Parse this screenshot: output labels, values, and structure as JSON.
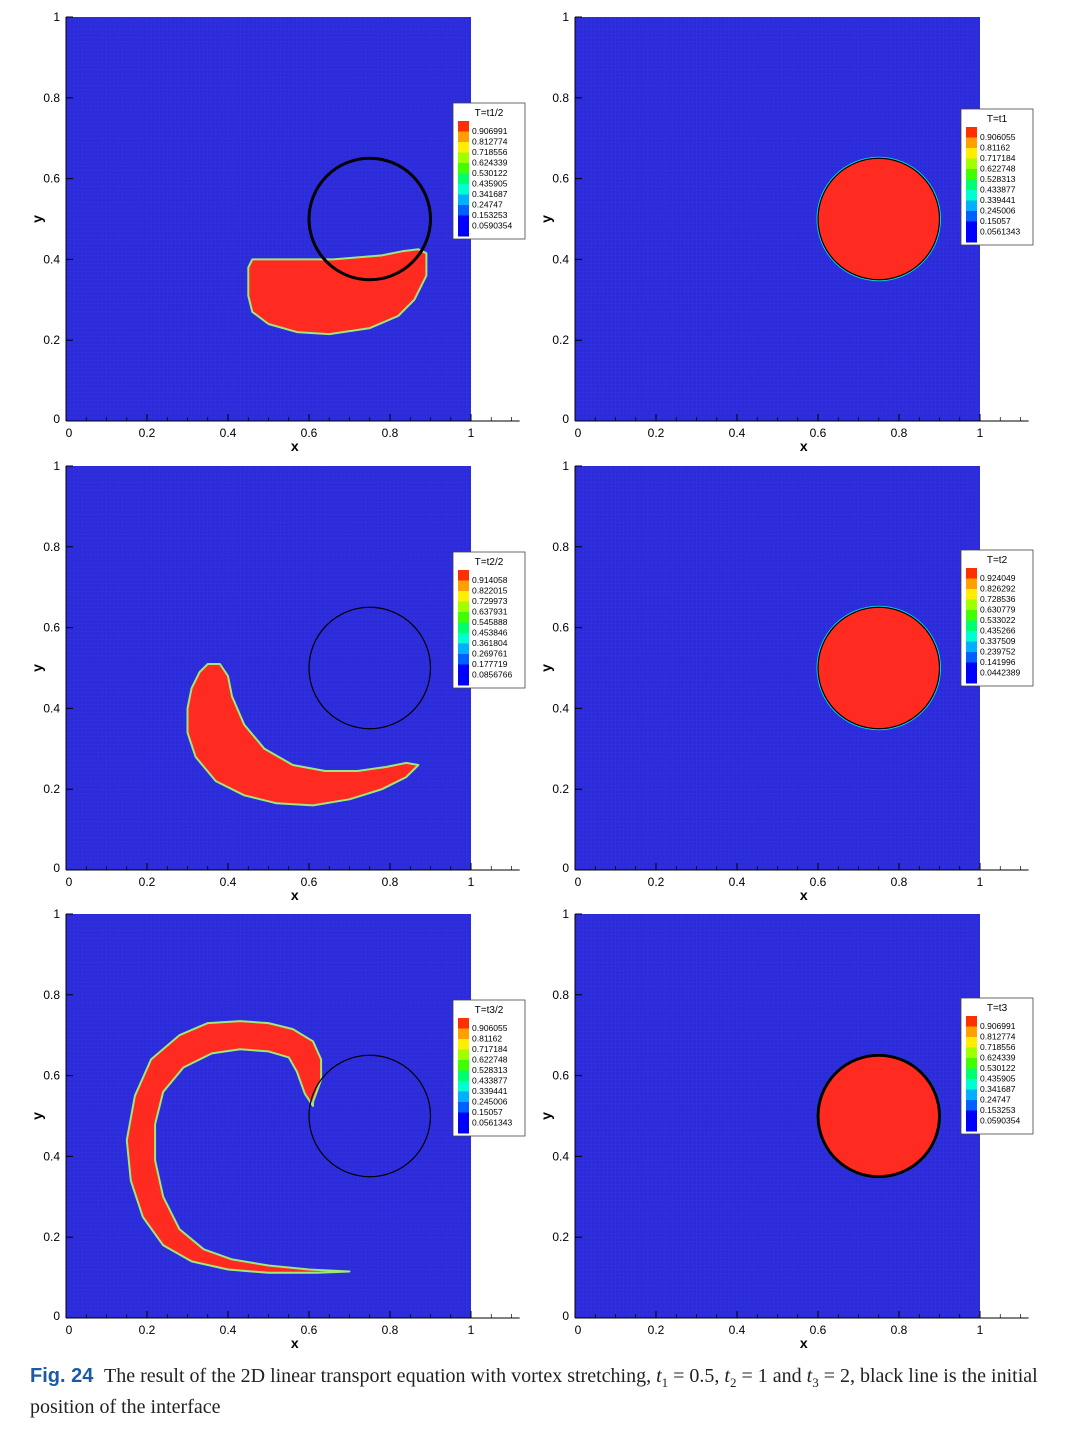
{
  "figure": {
    "label": "Fig. 24",
    "caption_parts": {
      "intro": "The result of the 2D linear transport equation with vortex stretching,",
      "t1_symbol": "t",
      "t1_index": "1",
      "t1_value": "= 0.5,",
      "t2_symbol": "t",
      "t2_index": "2",
      "t2_value": "= 1 and",
      "t3_symbol": "t",
      "t3_index": "3",
      "t3_value": "= 2,",
      "outro": "black line is the initial position of the interface"
    }
  },
  "colors": {
    "background_field": "#2b2bd8",
    "interface_field": "#ff2a20",
    "initial_interface_line": "#000000",
    "colormap": [
      "#0000ff",
      "#0060ff",
      "#00b0ff",
      "#00ffd0",
      "#00ff70",
      "#40ff00",
      "#a0ff00",
      "#ffee00",
      "#ffa000",
      "#ff3000"
    ]
  },
  "chart_data": [
    {
      "type": "heatmap",
      "panel": "T=t1/2",
      "legend_title": "T=t1/2",
      "legend_levels": [
        "0.906991",
        "0.812774",
        "0.718556",
        "0.624339",
        "0.530122",
        "0.435905",
        "0.341687",
        "0.24747",
        "0.153253",
        "0.0590354"
      ],
      "xlabel": "x",
      "ylabel": "y",
      "xlim": [
        0,
        1.12
      ],
      "ylim": [
        0,
        1
      ],
      "xticks": [
        "0",
        "0.2",
        "0.4",
        "0.6",
        "0.8",
        "1"
      ],
      "yticks": [
        "0",
        "0.2",
        "0.4",
        "0.6",
        "0.8",
        "1"
      ],
      "initial_circle": {
        "cx": 0.75,
        "cy": 0.5,
        "r": 0.15,
        "line": "thick"
      },
      "interface_shape": [
        [
          0.46,
          0.4
        ],
        [
          0.52,
          0.4
        ],
        [
          0.6,
          0.4
        ],
        [
          0.66,
          0.4
        ],
        [
          0.72,
          0.405
        ],
        [
          0.78,
          0.41
        ],
        [
          0.83,
          0.42
        ],
        [
          0.87,
          0.425
        ],
        [
          0.89,
          0.415
        ],
        [
          0.89,
          0.36
        ],
        [
          0.86,
          0.3
        ],
        [
          0.82,
          0.26
        ],
        [
          0.75,
          0.23
        ],
        [
          0.65,
          0.215
        ],
        [
          0.57,
          0.22
        ],
        [
          0.5,
          0.24
        ],
        [
          0.46,
          0.27
        ],
        [
          0.45,
          0.31
        ],
        [
          0.45,
          0.36
        ],
        [
          0.45,
          0.38
        ]
      ]
    },
    {
      "type": "heatmap",
      "panel": "T=t1",
      "legend_title": "T=t1",
      "legend_levels": [
        "0.906055",
        "0.81162",
        "0.717184",
        "0.622748",
        "0.528313",
        "0.433877",
        "0.339441",
        "0.245006",
        "0.15057",
        "0.0561343"
      ],
      "xlabel": "x",
      "ylabel": "y",
      "xlim": [
        0,
        1.12
      ],
      "ylim": [
        0,
        1
      ],
      "xticks": [
        "0",
        "0.2",
        "0.4",
        "0.6",
        "0.8",
        "1"
      ],
      "yticks": [
        "0",
        "0.2",
        "0.4",
        "0.6",
        "0.8",
        "1"
      ],
      "initial_circle": {
        "cx": 0.75,
        "cy": 0.5,
        "r": 0.15,
        "line": "thin"
      },
      "interface_shape": "circle"
    },
    {
      "type": "heatmap",
      "panel": "T=t2/2",
      "legend_title": "T=t2/2",
      "legend_levels": [
        "0.914058",
        "0.822015",
        "0.729973",
        "0.637931",
        "0.545888",
        "0.453846",
        "0.361804",
        "0.269761",
        "0.177719",
        "0.0856766"
      ],
      "xlabel": "x",
      "ylabel": "y",
      "xlim": [
        0,
        1.12
      ],
      "ylim": [
        0,
        1
      ],
      "xticks": [
        "0",
        "0.2",
        "0.4",
        "0.6",
        "0.8",
        "1"
      ],
      "yticks": [
        "0",
        "0.2",
        "0.4",
        "0.6",
        "0.8",
        "1"
      ],
      "initial_circle": {
        "cx": 0.75,
        "cy": 0.5,
        "r": 0.15,
        "line": "thin"
      },
      "interface_shape": [
        [
          0.35,
          0.51
        ],
        [
          0.38,
          0.51
        ],
        [
          0.4,
          0.48
        ],
        [
          0.41,
          0.43
        ],
        [
          0.44,
          0.36
        ],
        [
          0.49,
          0.3
        ],
        [
          0.56,
          0.26
        ],
        [
          0.64,
          0.245
        ],
        [
          0.72,
          0.245
        ],
        [
          0.79,
          0.255
        ],
        [
          0.84,
          0.265
        ],
        [
          0.87,
          0.26
        ],
        [
          0.84,
          0.23
        ],
        [
          0.78,
          0.2
        ],
        [
          0.7,
          0.175
        ],
        [
          0.61,
          0.16
        ],
        [
          0.52,
          0.165
        ],
        [
          0.44,
          0.185
        ],
        [
          0.37,
          0.22
        ],
        [
          0.32,
          0.28
        ],
        [
          0.3,
          0.34
        ],
        [
          0.3,
          0.4
        ],
        [
          0.31,
          0.45
        ],
        [
          0.33,
          0.49
        ]
      ]
    },
    {
      "type": "heatmap",
      "panel": "T=t2",
      "legend_title": "T=t2",
      "legend_levels": [
        "0.924049",
        "0.826292",
        "0.728536",
        "0.630779",
        "0.533022",
        "0.435266",
        "0.337509",
        "0.239752",
        "0.141996",
        "0.0442389"
      ],
      "xlabel": "x",
      "ylabel": "y",
      "xlim": [
        0,
        1.12
      ],
      "ylim": [
        0,
        1
      ],
      "xticks": [
        "0",
        "0.2",
        "0.4",
        "0.6",
        "0.8",
        "1"
      ],
      "yticks": [
        "0",
        "0.2",
        "0.4",
        "0.6",
        "0.8",
        "1"
      ],
      "initial_circle": {
        "cx": 0.75,
        "cy": 0.5,
        "r": 0.15,
        "line": "thin"
      },
      "interface_shape": "circle"
    },
    {
      "type": "heatmap",
      "panel": "T=t3/2",
      "legend_title": "T=t3/2",
      "legend_levels": [
        "0.906055",
        "0.81162",
        "0.717184",
        "0.622748",
        "0.528313",
        "0.433877",
        "0.339441",
        "0.245006",
        "0.15057",
        "0.0561343"
      ],
      "xlabel": "x",
      "ylabel": "y",
      "xlim": [
        0,
        1.12
      ],
      "ylim": [
        0,
        1
      ],
      "xticks": [
        "0",
        "0.2",
        "0.4",
        "0.6",
        "0.8",
        "1"
      ],
      "yticks": [
        "0",
        "0.2",
        "0.4",
        "0.6",
        "0.8",
        "1"
      ],
      "initial_circle": {
        "cx": 0.75,
        "cy": 0.5,
        "r": 0.15,
        "line": "thin"
      },
      "interface_shape": [
        [
          0.43,
          0.735
        ],
        [
          0.5,
          0.73
        ],
        [
          0.56,
          0.715
        ],
        [
          0.61,
          0.685
        ],
        [
          0.63,
          0.64
        ],
        [
          0.63,
          0.59
        ],
        [
          0.61,
          0.535
        ],
        [
          0.61,
          0.525
        ],
        [
          0.59,
          0.555
        ],
        [
          0.57,
          0.61
        ],
        [
          0.55,
          0.645
        ],
        [
          0.5,
          0.66
        ],
        [
          0.43,
          0.665
        ],
        [
          0.36,
          0.655
        ],
        [
          0.29,
          0.62
        ],
        [
          0.24,
          0.56
        ],
        [
          0.22,
          0.48
        ],
        [
          0.22,
          0.39
        ],
        [
          0.24,
          0.3
        ],
        [
          0.28,
          0.22
        ],
        [
          0.34,
          0.17
        ],
        [
          0.41,
          0.145
        ],
        [
          0.5,
          0.13
        ],
        [
          0.6,
          0.12
        ],
        [
          0.7,
          0.115
        ],
        [
          0.62,
          0.112
        ],
        [
          0.5,
          0.112
        ],
        [
          0.4,
          0.12
        ],
        [
          0.31,
          0.14
        ],
        [
          0.24,
          0.18
        ],
        [
          0.19,
          0.25
        ],
        [
          0.16,
          0.34
        ],
        [
          0.15,
          0.44
        ],
        [
          0.17,
          0.55
        ],
        [
          0.21,
          0.64
        ],
        [
          0.28,
          0.7
        ],
        [
          0.35,
          0.73
        ]
      ]
    },
    {
      "type": "heatmap",
      "panel": "T=t3",
      "legend_title": "T=t3",
      "legend_levels": [
        "0.906991",
        "0.812774",
        "0.718556",
        "0.624339",
        "0.530122",
        "0.435905",
        "0.341687",
        "0.24747",
        "0.153253",
        "0.0590354"
      ],
      "xlabel": "x",
      "ylabel": "y",
      "xlim": [
        0,
        1.12
      ],
      "ylim": [
        0,
        1
      ],
      "xticks": [
        "0",
        "0.2",
        "0.4",
        "0.6",
        "0.8",
        "1"
      ],
      "yticks": [
        "0",
        "0.2",
        "0.4",
        "0.6",
        "0.8",
        "1"
      ],
      "initial_circle": {
        "cx": 0.75,
        "cy": 0.5,
        "r": 0.15,
        "line": "thick"
      },
      "interface_shape": "circle"
    }
  ]
}
